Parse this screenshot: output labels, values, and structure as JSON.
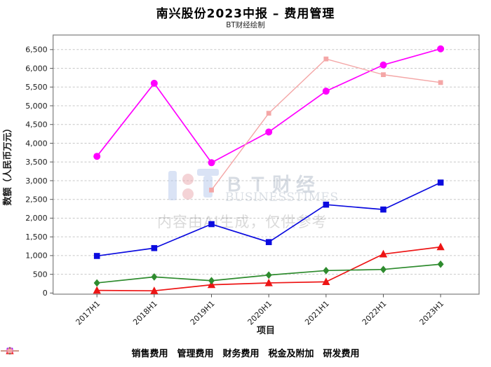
{
  "page": {
    "title": "南兴股份2023中报 – 费用管理",
    "subtitle": "BT财经绘制"
  },
  "watermark": {
    "brand_cn": "ＢＴ财经",
    "brand_en": "BUSINESSTIMES",
    "ai_note": "内容由AI生成，仅供参考"
  },
  "chart_data": {
    "type": "line",
    "title": "南兴股份2023中报 – 费用管理",
    "subtitle": "BT财经绘制",
    "xlabel": "项目",
    "ylabel": "数额（人民币万元）",
    "categories": [
      "2017H1",
      "2018H1",
      "2019H1",
      "2020H1",
      "2021H1",
      "2022H1",
      "2023H1"
    ],
    "series": [
      {
        "name": "销售费用",
        "color": "#0b0bdf",
        "marker": "square",
        "values": [
          990,
          1200,
          1840,
          1360,
          2360,
          2230,
          2950
        ]
      },
      {
        "name": "管理费用",
        "color": "#ff00ff",
        "marker": "circle",
        "values": [
          3650,
          5600,
          3480,
          4300,
          5390,
          6090,
          6520
        ]
      },
      {
        "name": "财务费用",
        "color": "#ed1515",
        "marker": "triangle",
        "values": [
          70,
          60,
          220,
          270,
          300,
          1040,
          1230
        ]
      },
      {
        "name": "税金及附加",
        "color": "#2e8b2e",
        "marker": "diamond",
        "values": [
          270,
          430,
          330,
          480,
          600,
          630,
          770
        ]
      },
      {
        "name": "研发费用",
        "color": "#f4a6a6",
        "marker": "square",
        "values": [
          null,
          null,
          2750,
          4800,
          6250,
          5830,
          5620
        ]
      }
    ],
    "ylim": [
      0,
      6500
    ],
    "ytick_step": 500,
    "grid": "horizontal-dashed",
    "legend_position": "bottom"
  }
}
